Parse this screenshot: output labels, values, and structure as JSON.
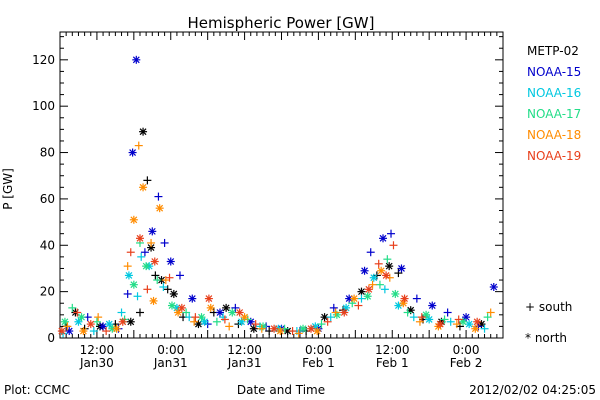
{
  "chart_data": {
    "type": "scatter",
    "title": "Hemispheric Power [GW]",
    "xlabel": "Date and Time",
    "ylabel": "P [GW]",
    "x_unit": "hours",
    "xlim": [
      0,
      72
    ],
    "ylim": [
      0,
      132
    ],
    "x_ticks": [
      {
        "x": 6,
        "line1": "12:00",
        "line2": "Jan30"
      },
      {
        "x": 18,
        "line1": "0:00",
        "line2": "Jan31"
      },
      {
        "x": 30,
        "line1": "12:00",
        "line2": "Jan31"
      },
      {
        "x": 42,
        "line1": "0:00",
        "line2": "Feb 1"
      },
      {
        "x": 54,
        "line1": "12:00",
        "line2": "Feb 1"
      },
      {
        "x": 66,
        "line1": "0:00",
        "line2": "Feb 2"
      }
    ],
    "y_ticks": [
      0,
      20,
      40,
      60,
      80,
      100,
      120
    ],
    "grid": false,
    "marker_legend": [
      {
        "marker": "plus",
        "label": "+ south"
      },
      {
        "marker": "asterisk",
        "label": "* north"
      }
    ],
    "footer": {
      "left": "Plot: CCMC",
      "right": "2012/02/02 04:25:05"
    },
    "series": [
      {
        "name": "METP-02",
        "color": "#000000",
        "points": [
          [
            1.0,
            5,
            "s"
          ],
          [
            2.5,
            11,
            "n"
          ],
          [
            4.0,
            4,
            "s"
          ],
          [
            6.5,
            5,
            "n"
          ],
          [
            9.0,
            6,
            "s"
          ],
          [
            11.5,
            7,
            "n"
          ],
          [
            13.0,
            11,
            "s"
          ],
          [
            13.5,
            89,
            "n"
          ],
          [
            14.2,
            68,
            "s"
          ],
          [
            14.8,
            39,
            "n"
          ],
          [
            15.5,
            27,
            "s"
          ],
          [
            16.5,
            25,
            "n"
          ],
          [
            17.5,
            21,
            "s"
          ],
          [
            18.5,
            19,
            "n"
          ],
          [
            20.0,
            9,
            "s"
          ],
          [
            22.5,
            6,
            "n"
          ],
          [
            25.0,
            11,
            "s"
          ],
          [
            27.0,
            13,
            "n"
          ],
          [
            29.0,
            6,
            "s"
          ],
          [
            31.5,
            4,
            "n"
          ],
          [
            34.0,
            3,
            "s"
          ],
          [
            37.0,
            3,
            "n"
          ],
          [
            40.0,
            3,
            "s"
          ],
          [
            43.0,
            9,
            "n"
          ],
          [
            46.0,
            12,
            "s"
          ],
          [
            49.0,
            20,
            "n"
          ],
          [
            51.5,
            27,
            "s"
          ],
          [
            53.5,
            31,
            "n"
          ],
          [
            55.0,
            28,
            "s"
          ],
          [
            57.0,
            12,
            "n"
          ],
          [
            59.0,
            8,
            "s"
          ],
          [
            62.0,
            7,
            "n"
          ],
          [
            65.0,
            5,
            "s"
          ],
          [
            68.5,
            6,
            "n"
          ]
        ]
      },
      {
        "name": "NOAA-15",
        "color": "#0000cc",
        "points": [
          [
            1.5,
            3,
            "n"
          ],
          [
            4.5,
            9,
            "s"
          ],
          [
            7.0,
            5,
            "n"
          ],
          [
            9.5,
            4,
            "s"
          ],
          [
            11.0,
            19,
            "s"
          ],
          [
            11.8,
            80,
            "n"
          ],
          [
            12.4,
            120,
            "n"
          ],
          [
            13.8,
            37,
            "s"
          ],
          [
            15.0,
            46,
            "n"
          ],
          [
            16.0,
            61,
            "s"
          ],
          [
            17.0,
            41,
            "s"
          ],
          [
            18.0,
            33,
            "n"
          ],
          [
            19.5,
            27,
            "s"
          ],
          [
            21.5,
            17,
            "n"
          ],
          [
            24.0,
            6,
            "s"
          ],
          [
            26.0,
            11,
            "n"
          ],
          [
            28.5,
            13,
            "s"
          ],
          [
            31.0,
            7,
            "n"
          ],
          [
            33.5,
            5,
            "s"
          ],
          [
            36.0,
            4,
            "n"
          ],
          [
            39.0,
            3,
            "s"
          ],
          [
            42.0,
            4,
            "n"
          ],
          [
            44.5,
            13,
            "s"
          ],
          [
            47.0,
            17,
            "n"
          ],
          [
            49.5,
            29,
            "n"
          ],
          [
            50.5,
            37,
            "s"
          ],
          [
            52.5,
            43,
            "n"
          ],
          [
            53.8,
            45,
            "s"
          ],
          [
            55.5,
            30,
            "n"
          ],
          [
            58.0,
            17,
            "s"
          ],
          [
            60.5,
            14,
            "n"
          ],
          [
            63.0,
            11,
            "s"
          ],
          [
            66.0,
            9,
            "n"
          ],
          [
            68.0,
            5,
            "s"
          ],
          [
            70.5,
            22,
            "n"
          ]
        ]
      },
      {
        "name": "NOAA-16",
        "color": "#00c8e0",
        "points": [
          [
            0.5,
            2,
            "s"
          ],
          [
            3.0,
            7,
            "n"
          ],
          [
            5.5,
            3,
            "s"
          ],
          [
            8.0,
            6,
            "n"
          ],
          [
            10.0,
            11,
            "s"
          ],
          [
            11.2,
            27,
            "n"
          ],
          [
            12.6,
            18,
            "s"
          ],
          [
            13.2,
            35,
            "s"
          ],
          [
            14.5,
            31,
            "n"
          ],
          [
            16.8,
            22,
            "s"
          ],
          [
            19.0,
            13,
            "n"
          ],
          [
            21.0,
            9,
            "s"
          ],
          [
            23.5,
            7,
            "n"
          ],
          [
            26.5,
            9,
            "s"
          ],
          [
            29.5,
            7,
            "n"
          ],
          [
            32.5,
            5,
            "s"
          ],
          [
            35.5,
            4,
            "n"
          ],
          [
            38.5,
            3,
            "s"
          ],
          [
            41.5,
            5,
            "n"
          ],
          [
            44.0,
            9,
            "s"
          ],
          [
            46.5,
            13,
            "n"
          ],
          [
            49.0,
            17,
            "s"
          ],
          [
            51.0,
            26,
            "n"
          ],
          [
            52.8,
            21,
            "s"
          ],
          [
            55.0,
            14,
            "n"
          ],
          [
            57.5,
            9,
            "s"
          ],
          [
            60.0,
            8,
            "n"
          ],
          [
            63.5,
            7,
            "s"
          ],
          [
            66.5,
            6,
            "n"
          ],
          [
            69.0,
            4,
            "s"
          ]
        ]
      },
      {
        "name": "NOAA-17",
        "color": "#22dd88",
        "points": [
          [
            0.8,
            7,
            "n"
          ],
          [
            2.0,
            13,
            "s"
          ],
          [
            3.5,
            9,
            "n"
          ],
          [
            6.0,
            7,
            "s"
          ],
          [
            8.5,
            4,
            "n"
          ],
          [
            10.5,
            8,
            "s"
          ],
          [
            12.0,
            23,
            "n"
          ],
          [
            13.0,
            41,
            "s"
          ],
          [
            14.0,
            31,
            "n"
          ],
          [
            15.8,
            25,
            "s"
          ],
          [
            18.2,
            14,
            "n"
          ],
          [
            20.5,
            11,
            "s"
          ],
          [
            23.0,
            9,
            "n"
          ],
          [
            25.5,
            7,
            "s"
          ],
          [
            28.0,
            11,
            "n"
          ],
          [
            30.5,
            8,
            "s"
          ],
          [
            33.0,
            5,
            "n"
          ],
          [
            36.5,
            4,
            "s"
          ],
          [
            39.5,
            4,
            "n"
          ],
          [
            42.5,
            6,
            "s"
          ],
          [
            45.0,
            10,
            "n"
          ],
          [
            47.5,
            15,
            "s"
          ],
          [
            50.0,
            18,
            "n"
          ],
          [
            52.0,
            23,
            "s"
          ],
          [
            53.2,
            34,
            "s"
          ],
          [
            54.5,
            19,
            "n"
          ],
          [
            56.5,
            11,
            "s"
          ],
          [
            59.5,
            10,
            "n"
          ],
          [
            62.5,
            8,
            "s"
          ],
          [
            65.5,
            7,
            "n"
          ],
          [
            69.5,
            9,
            "s"
          ]
        ]
      },
      {
        "name": "NOAA-18",
        "color": "#ff8c00",
        "points": [
          [
            1.2,
            5,
            "s"
          ],
          [
            3.8,
            3,
            "n"
          ],
          [
            6.2,
            9,
            "s"
          ],
          [
            9.2,
            4,
            "n"
          ],
          [
            11.0,
            31,
            "s"
          ],
          [
            12.0,
            51,
            "n"
          ],
          [
            12.8,
            83,
            "s"
          ],
          [
            13.5,
            65,
            "n"
          ],
          [
            14.8,
            41,
            "s"
          ],
          [
            15.2,
            16,
            "n"
          ],
          [
            16.2,
            56,
            "n"
          ],
          [
            17.2,
            25,
            "s"
          ],
          [
            19.2,
            11,
            "n"
          ],
          [
            21.8,
            7,
            "s"
          ],
          [
            24.5,
            13,
            "n"
          ],
          [
            27.5,
            5,
            "s"
          ],
          [
            30.0,
            9,
            "n"
          ],
          [
            32.8,
            4,
            "s"
          ],
          [
            35.8,
            3,
            "n"
          ],
          [
            38.8,
            2,
            "s"
          ],
          [
            41.8,
            3,
            "n"
          ],
          [
            44.8,
            11,
            "s"
          ],
          [
            47.8,
            17,
            "n"
          ],
          [
            50.8,
            23,
            "s"
          ],
          [
            52.2,
            29,
            "n"
          ],
          [
            53.6,
            26,
            "s"
          ],
          [
            55.8,
            15,
            "n"
          ],
          [
            58.5,
            7,
            "s"
          ],
          [
            61.5,
            5,
            "n"
          ],
          [
            64.5,
            6,
            "s"
          ],
          [
            67.5,
            4,
            "n"
          ],
          [
            70.0,
            11,
            "s"
          ]
        ]
      },
      {
        "name": "NOAA-19",
        "color": "#e8401c",
        "points": [
          [
            0.3,
            3,
            "n"
          ],
          [
            2.8,
            11,
            "s"
          ],
          [
            5.0,
            6,
            "n"
          ],
          [
            7.5,
            3,
            "s"
          ],
          [
            10.2,
            7,
            "n"
          ],
          [
            11.5,
            37,
            "s"
          ],
          [
            13.0,
            43,
            "n"
          ],
          [
            14.2,
            21,
            "s"
          ],
          [
            15.4,
            33,
            "n"
          ],
          [
            17.8,
            26,
            "s"
          ],
          [
            19.8,
            13,
            "n"
          ],
          [
            22.0,
            9,
            "s"
          ],
          [
            24.2,
            17,
            "n"
          ],
          [
            26.8,
            8,
            "s"
          ],
          [
            29.2,
            11,
            "n"
          ],
          [
            31.8,
            6,
            "s"
          ],
          [
            34.8,
            4,
            "n"
          ],
          [
            37.8,
            3,
            "s"
          ],
          [
            40.8,
            4,
            "n"
          ],
          [
            43.5,
            7,
            "s"
          ],
          [
            46.2,
            11,
            "n"
          ],
          [
            48.5,
            14,
            "s"
          ],
          [
            50.2,
            21,
            "n"
          ],
          [
            51.8,
            32,
            "s"
          ],
          [
            53.0,
            27,
            "n"
          ],
          [
            54.2,
            40,
            "s"
          ],
          [
            56.0,
            17,
            "n"
          ],
          [
            58.8,
            9,
            "s"
          ],
          [
            61.8,
            6,
            "n"
          ],
          [
            64.8,
            8,
            "s"
          ],
          [
            67.8,
            7,
            "n"
          ]
        ]
      }
    ]
  }
}
